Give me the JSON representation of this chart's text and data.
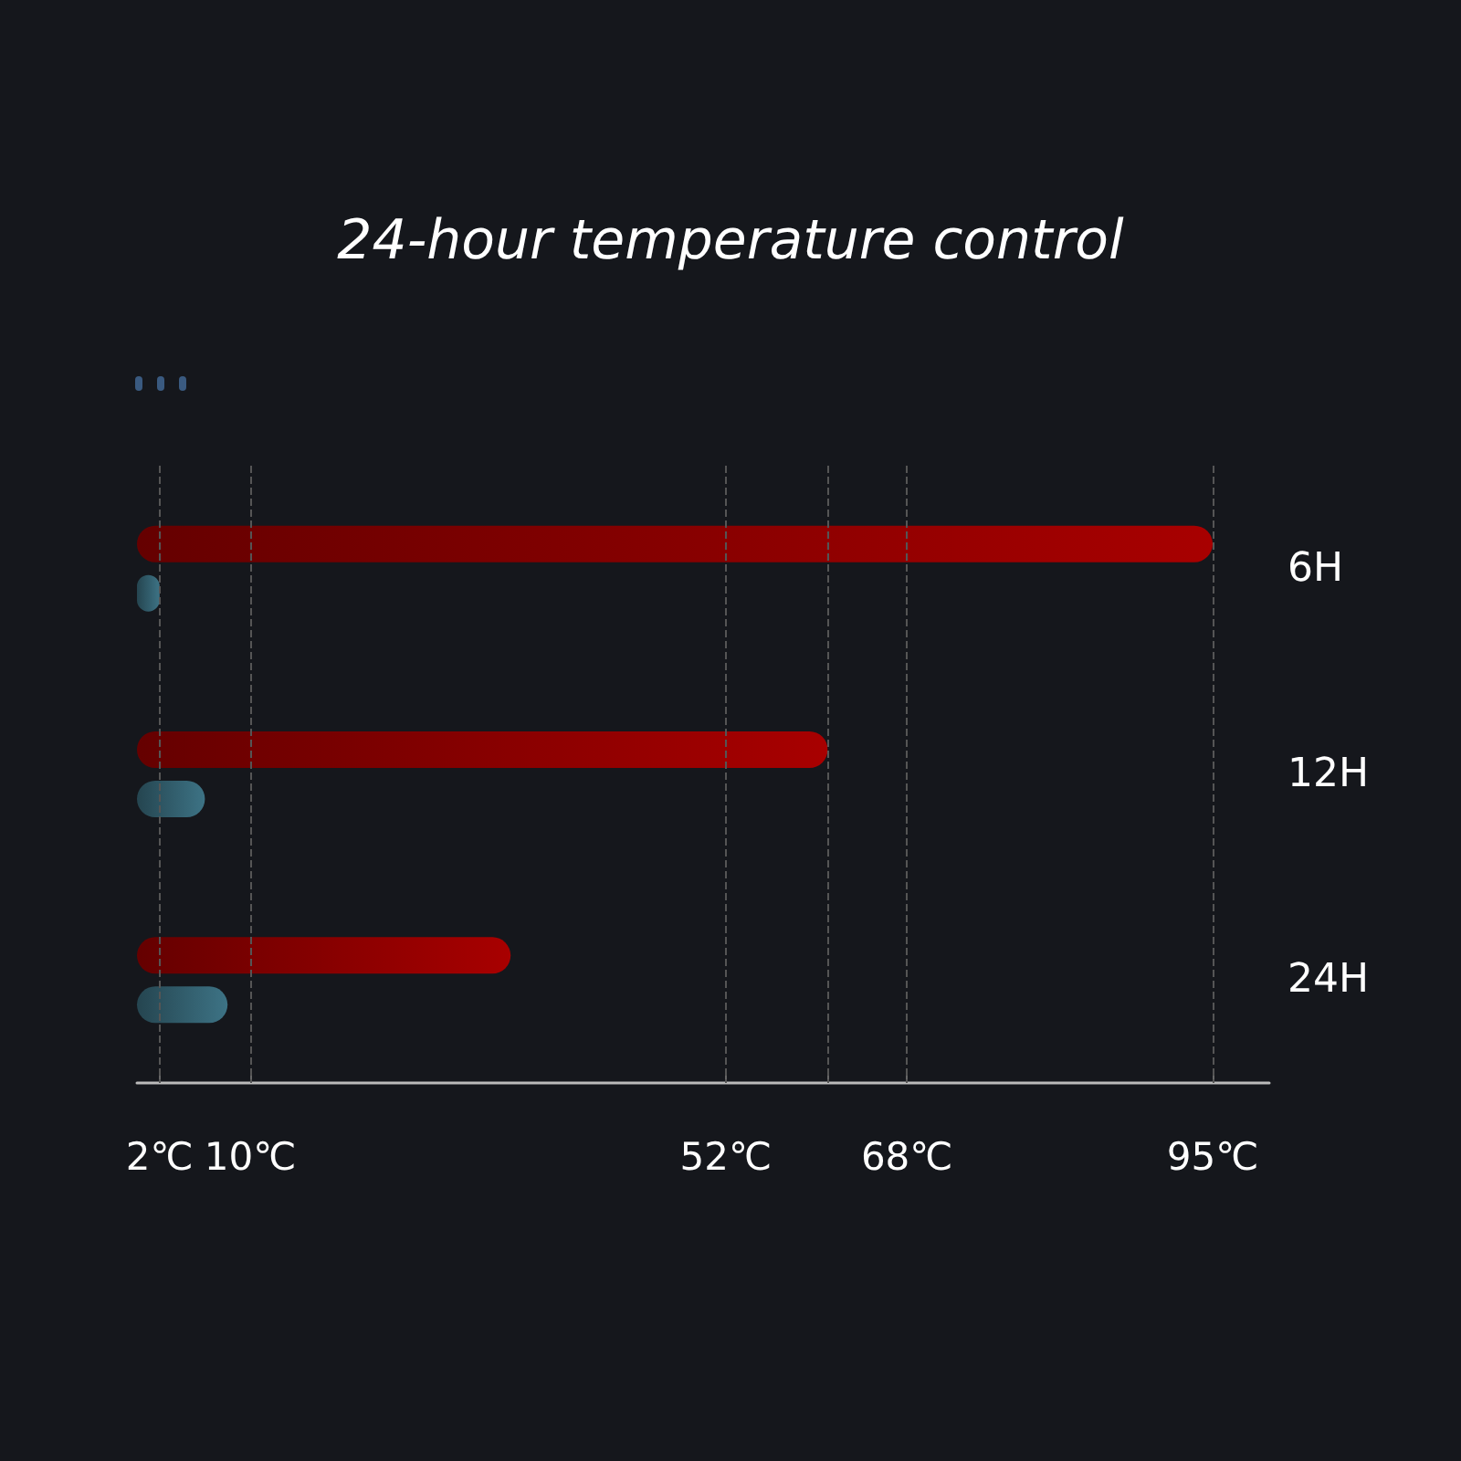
{
  "chart_data": {
    "type": "bar",
    "orientation": "horizontal",
    "title": "24-hour temperature control",
    "categories": [
      "6H",
      "12H",
      "24H"
    ],
    "series": [
      {
        "color": "#a80000",
        "values": [
          95,
          61,
          33
        ]
      },
      {
        "color": "#3d7385",
        "values": [
          2,
          6,
          8
        ]
      }
    ],
    "xlim": [
      0,
      100
    ],
    "xticks": [
      {
        "value": 2,
        "label": "2℃"
      },
      {
        "value": 10,
        "label": "10℃"
      },
      {
        "value": 52,
        "label": "52℃"
      },
      {
        "value": 61,
        "label": null
      },
      {
        "value": 68,
        "label": "68℃"
      },
      {
        "value": 95,
        "label": "95℃"
      }
    ],
    "grid": "x"
  }
}
